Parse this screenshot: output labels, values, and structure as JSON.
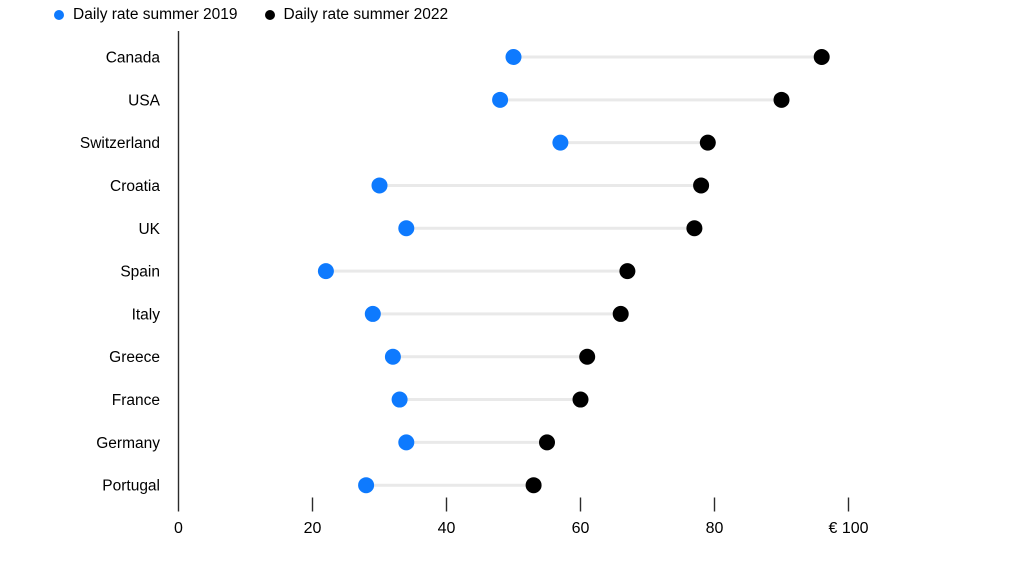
{
  "chart_data": {
    "type": "dumbbell",
    "title": "",
    "categories": [
      "Canada",
      "USA",
      "Switzerland",
      "Croatia",
      "UK",
      "Spain",
      "Italy",
      "Greece",
      "France",
      "Germany",
      "Portugal"
    ],
    "series": [
      {
        "name": "Daily rate summer 2019",
        "color": "#0e7afe",
        "values": [
          50,
          48,
          57,
          30,
          34,
          22,
          29,
          32,
          33,
          34,
          28
        ]
      },
      {
        "name": "Daily rate summer 2022",
        "color": "#000000",
        "values": [
          96,
          90,
          79,
          78,
          77,
          67,
          66,
          61,
          60,
          55,
          53
        ]
      }
    ],
    "x_axis": {
      "range": [
        0,
        100
      ],
      "ticks": [
        0,
        20,
        40,
        60,
        80,
        100
      ],
      "tick_labels": [
        "0",
        "20",
        "40",
        "60",
        "80",
        "€ 100"
      ],
      "currency_symbol": "€"
    },
    "legend_position": "top-left",
    "grid": false,
    "connector_color": "#e9e9e9",
    "axis_color": "#2b2b2b",
    "text_color": "#000000",
    "background": "#ffffff"
  }
}
